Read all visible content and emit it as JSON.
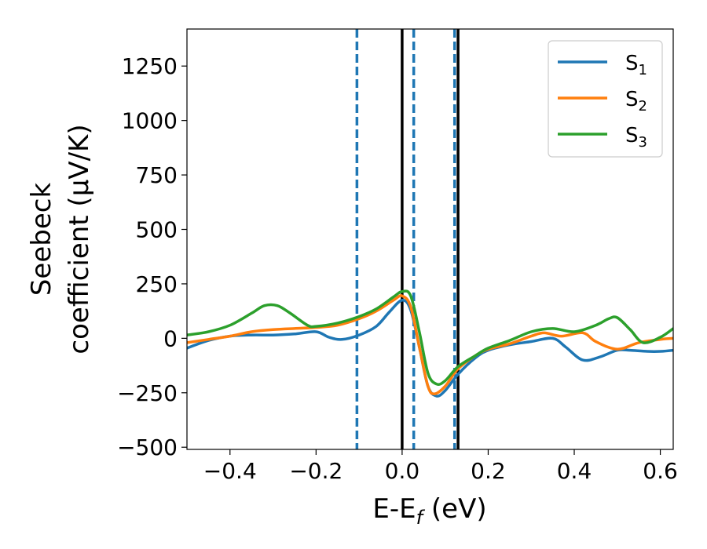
{
  "chart_data": {
    "type": "line",
    "xlabel": "E-E",
    "xlabel_sub": "f",
    "xlabel_unit": " (eV)",
    "ylabel_line1": "Seebeck",
    "ylabel_line2": "coefficient  (μV/K)",
    "xlim": [
      -0.5,
      0.63
    ],
    "ylim": [
      -510,
      1420
    ],
    "x_ticks": [
      -0.4,
      -0.2,
      0.0,
      0.2,
      0.4,
      0.6
    ],
    "x_tick_labels": [
      "−0.4",
      "−0.2",
      "0.0",
      "0.2",
      "0.4",
      "0.6"
    ],
    "y_ticks": [
      -500,
      -250,
      0,
      250,
      500,
      750,
      1000,
      1250
    ],
    "y_tick_labels": [
      "−500",
      "−250",
      "0",
      "250",
      "500",
      "750",
      "1000",
      "1250"
    ],
    "grid": false,
    "legend_position": "top-right",
    "vlines": [
      {
        "x": -0.105,
        "style": "dashed",
        "color": "#1f77b4"
      },
      {
        "x": 0.027,
        "style": "dashed",
        "color": "#1f77b4"
      },
      {
        "x": 0.122,
        "style": "dashed",
        "color": "#1f77b4"
      },
      {
        "x": 0.0,
        "style": "solid",
        "color": "#000000"
      },
      {
        "x": 0.13,
        "style": "solid",
        "color": "#000000"
      }
    ],
    "series": [
      {
        "name": "S",
        "sub": "1",
        "color": "#1f77b4",
        "points": [
          [
            -0.5,
            -45
          ],
          [
            -0.45,
            -10
          ],
          [
            -0.4,
            10
          ],
          [
            -0.35,
            15
          ],
          [
            -0.3,
            15
          ],
          [
            -0.25,
            20
          ],
          [
            -0.2,
            30
          ],
          [
            -0.17,
            5
          ],
          [
            -0.14,
            -5
          ],
          [
            -0.1,
            15
          ],
          [
            -0.06,
            55
          ],
          [
            -0.03,
            120
          ],
          [
            0.0,
            175
          ],
          [
            0.02,
            130
          ],
          [
            0.04,
            -40
          ],
          [
            0.06,
            -220
          ],
          [
            0.08,
            -265
          ],
          [
            0.1,
            -240
          ],
          [
            0.13,
            -165
          ],
          [
            0.17,
            -90
          ],
          [
            0.2,
            -55
          ],
          [
            0.25,
            -30
          ],
          [
            0.3,
            -15
          ],
          [
            0.35,
            0
          ],
          [
            0.38,
            -40
          ],
          [
            0.42,
            -100
          ],
          [
            0.46,
            -85
          ],
          [
            0.5,
            -55
          ],
          [
            0.53,
            -55
          ],
          [
            0.57,
            -60
          ],
          [
            0.6,
            -60
          ],
          [
            0.63,
            -55
          ]
        ]
      },
      {
        "name": "S",
        "sub": "2",
        "color": "#ff7f0e",
        "points": [
          [
            -0.5,
            -20
          ],
          [
            -0.45,
            -5
          ],
          [
            -0.4,
            10
          ],
          [
            -0.35,
            30
          ],
          [
            -0.3,
            40
          ],
          [
            -0.25,
            45
          ],
          [
            -0.2,
            50
          ],
          [
            -0.15,
            60
          ],
          [
            -0.1,
            90
          ],
          [
            -0.06,
            125
          ],
          [
            -0.02,
            175
          ],
          [
            0.0,
            195
          ],
          [
            0.02,
            145
          ],
          [
            0.04,
            -40
          ],
          [
            0.06,
            -220
          ],
          [
            0.075,
            -255
          ],
          [
            0.1,
            -220
          ],
          [
            0.13,
            -140
          ],
          [
            0.17,
            -80
          ],
          [
            0.2,
            -50
          ],
          [
            0.25,
            -25
          ],
          [
            0.3,
            10
          ],
          [
            0.33,
            25
          ],
          [
            0.37,
            10
          ],
          [
            0.42,
            25
          ],
          [
            0.45,
            -15
          ],
          [
            0.5,
            -50
          ],
          [
            0.55,
            -20
          ],
          [
            0.6,
            -5
          ],
          [
            0.63,
            0
          ]
        ]
      },
      {
        "name": "S",
        "sub": "3",
        "color": "#2ca02c",
        "points": [
          [
            -0.5,
            15
          ],
          [
            -0.45,
            30
          ],
          [
            -0.4,
            60
          ],
          [
            -0.35,
            115
          ],
          [
            -0.32,
            150
          ],
          [
            -0.29,
            150
          ],
          [
            -0.26,
            115
          ],
          [
            -0.22,
            60
          ],
          [
            -0.2,
            55
          ],
          [
            -0.15,
            70
          ],
          [
            -0.1,
            100
          ],
          [
            -0.06,
            135
          ],
          [
            -0.02,
            190
          ],
          [
            0.0,
            215
          ],
          [
            0.02,
            195
          ],
          [
            0.04,
            30
          ],
          [
            0.06,
            -160
          ],
          [
            0.08,
            -210
          ],
          [
            0.1,
            -195
          ],
          [
            0.13,
            -130
          ],
          [
            0.17,
            -80
          ],
          [
            0.2,
            -45
          ],
          [
            0.25,
            -10
          ],
          [
            0.3,
            30
          ],
          [
            0.35,
            45
          ],
          [
            0.4,
            30
          ],
          [
            0.45,
            60
          ],
          [
            0.48,
            90
          ],
          [
            0.5,
            95
          ],
          [
            0.53,
            40
          ],
          [
            0.56,
            -20
          ],
          [
            0.6,
            5
          ],
          [
            0.63,
            45
          ]
        ]
      }
    ]
  }
}
